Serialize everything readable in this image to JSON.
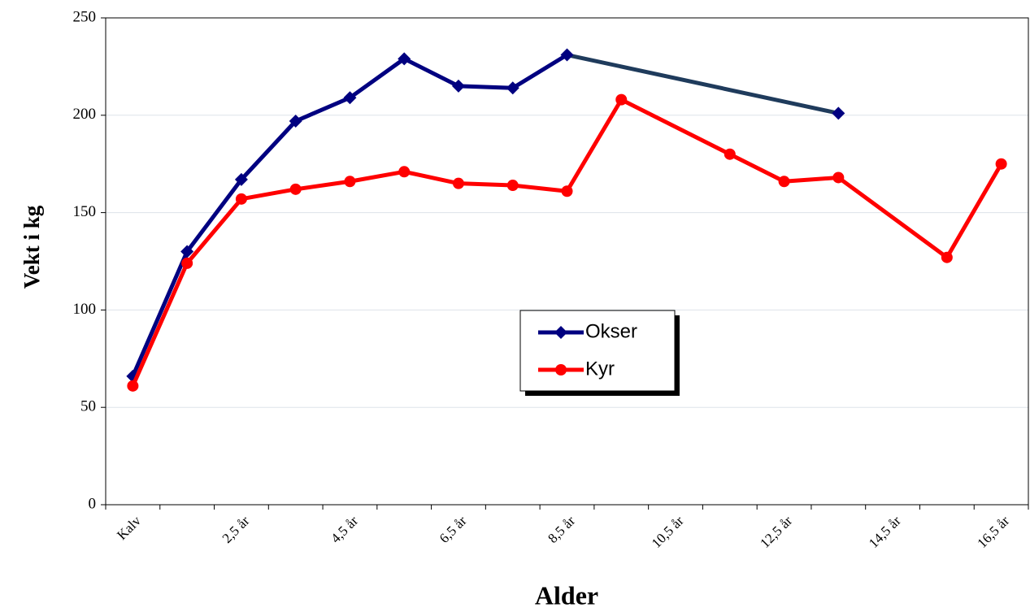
{
  "chart_data": {
    "type": "line",
    "x_label": "Alder",
    "y_label": "Vekt i kg",
    "categories": [
      "Kalv",
      null,
      "2,5 år",
      null,
      "4,5 år",
      null,
      "6,5 år",
      null,
      "8,5 år",
      null,
      "10,5 år",
      null,
      "12,5 år",
      null,
      "14,5 år",
      null,
      "16,5 år"
    ],
    "series": [
      {
        "name": "Okser",
        "color": "#000080",
        "gap_color": "#1f3b5c",
        "marker": "diamond",
        "values": [
          66,
          130,
          167,
          197,
          209,
          229,
          215,
          214,
          231,
          null,
          null,
          null,
          null,
          201,
          null,
          null,
          null
        ]
      },
      {
        "name": "Kyr",
        "color": "#ff0000",
        "gap_color": "#ff0000",
        "marker": "circle",
        "values": [
          61,
          124,
          157,
          162,
          166,
          171,
          165,
          164,
          161,
          208,
          null,
          180,
          166,
          168,
          null,
          127,
          175
        ]
      }
    ],
    "connect_gaps": true,
    "ylim": [
      0,
      250
    ],
    "yticks": [
      0,
      50,
      100,
      150,
      200,
      250
    ],
    "grid": true
  }
}
